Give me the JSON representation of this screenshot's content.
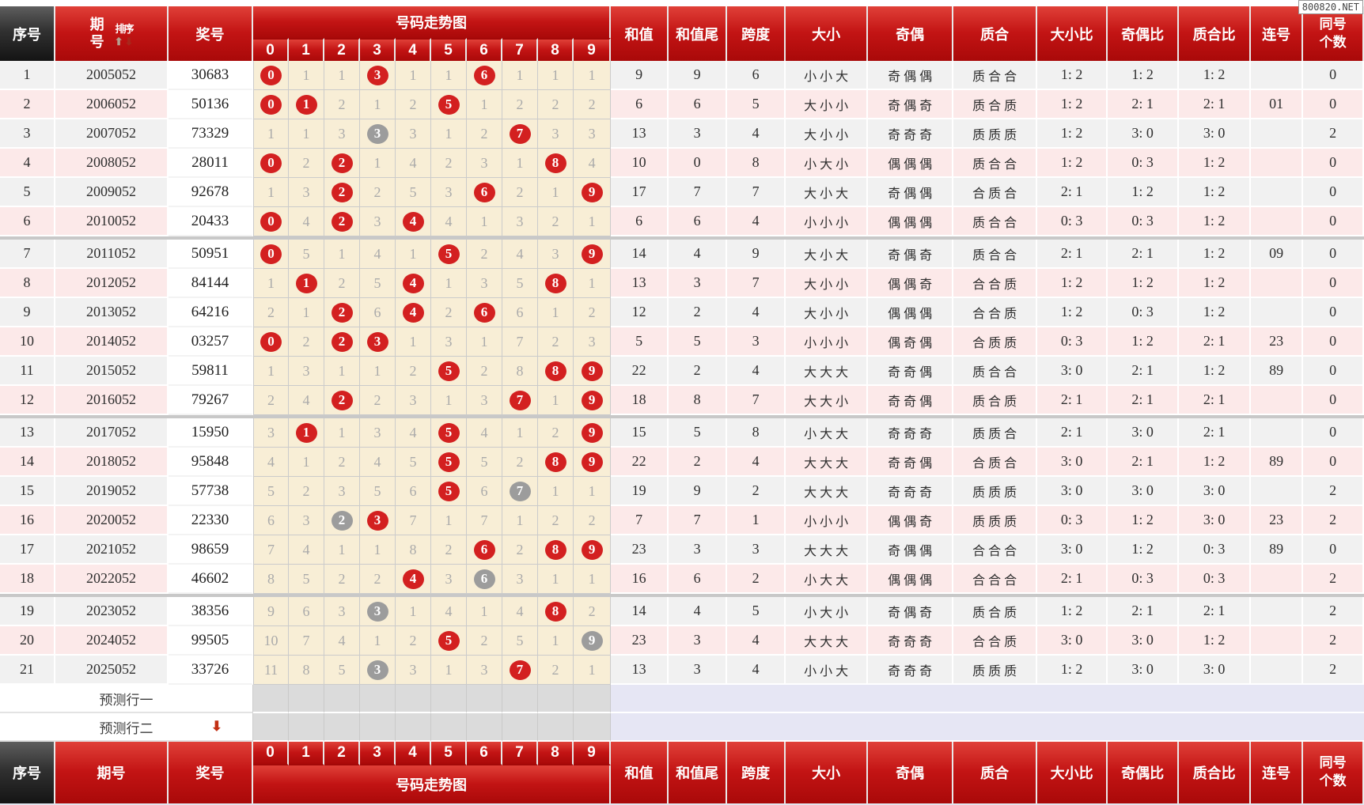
{
  "watermark": "800820.NET",
  "header": {
    "serial": "序号",
    "issue": "期号",
    "sort": "排序",
    "sort_up_icon": "⬆",
    "sort_down_icon": "⬇",
    "prize": "奖号",
    "trend_title": "号码走势图",
    "digits": [
      "0",
      "1",
      "2",
      "3",
      "4",
      "5",
      "6",
      "7",
      "8",
      "9"
    ],
    "stats": [
      "和值",
      "和值尾",
      "跨度",
      "大小",
      "奇偶",
      "质合",
      "大小比",
      "奇偶比",
      "质合比",
      "连号",
      "同号个数"
    ]
  },
  "footer": {
    "serial": "序号",
    "issue": "期号",
    "prize": "奖号",
    "trend_title": "号码走势图"
  },
  "legend": {
    "r": "red circle = drawn digit",
    "g": "gray circle = digit drawn more than once"
  },
  "group_separator_after": [
    6,
    12,
    18
  ],
  "rows": [
    {
      "no": "1",
      "issue": "2005052",
      "prize": "30683",
      "trend": [
        "0r",
        "1",
        "1",
        "3r",
        "1",
        "1",
        "6r",
        "1",
        "1",
        "1"
      ],
      "stats": [
        "9",
        "9",
        "6",
        "小小大",
        "奇偶偶",
        "质合合",
        "1: 2",
        "1: 2",
        "1: 2",
        "",
        "0"
      ]
    },
    {
      "no": "2",
      "issue": "2006052",
      "prize": "50136",
      "trend": [
        "0r",
        "1r",
        "2",
        "1",
        "2",
        "5r",
        "1",
        "2",
        "2",
        "2"
      ],
      "stats": [
        "6",
        "6",
        "5",
        "大小小",
        "奇偶奇",
        "质合质",
        "1: 2",
        "2: 1",
        "2: 1",
        "01",
        "0"
      ]
    },
    {
      "no": "3",
      "issue": "2007052",
      "prize": "73329",
      "trend": [
        "1",
        "1",
        "3",
        "3g",
        "3",
        "1",
        "2",
        "7r",
        "3",
        "3"
      ],
      "stats": [
        "13",
        "3",
        "4",
        "大小小",
        "奇奇奇",
        "质质质",
        "1: 2",
        "3: 0",
        "3: 0",
        "",
        "2"
      ]
    },
    {
      "no": "4",
      "issue": "2008052",
      "prize": "28011",
      "trend": [
        "0r",
        "2",
        "2r",
        "1",
        "4",
        "2",
        "3",
        "1",
        "8r",
        "4"
      ],
      "stats": [
        "10",
        "0",
        "8",
        "小大小",
        "偶偶偶",
        "质合合",
        "1: 2",
        "0: 3",
        "1: 2",
        "",
        "0"
      ]
    },
    {
      "no": "5",
      "issue": "2009052",
      "prize": "92678",
      "trend": [
        "1",
        "3",
        "2r",
        "2",
        "5",
        "3",
        "6r",
        "2",
        "1",
        "9r"
      ],
      "stats": [
        "17",
        "7",
        "7",
        "大小大",
        "奇偶偶",
        "合质合",
        "2: 1",
        "1: 2",
        "1: 2",
        "",
        "0"
      ]
    },
    {
      "no": "6",
      "issue": "2010052",
      "prize": "20433",
      "trend": [
        "0r",
        "4",
        "2r",
        "3",
        "4r",
        "4",
        "1",
        "3",
        "2",
        "1"
      ],
      "stats": [
        "6",
        "6",
        "4",
        "小小小",
        "偶偶偶",
        "质合合",
        "0: 3",
        "0: 3",
        "1: 2",
        "",
        "0"
      ]
    },
    {
      "no": "7",
      "issue": "2011052",
      "prize": "50951",
      "trend": [
        "0r",
        "5",
        "1",
        "4",
        "1",
        "5r",
        "2",
        "4",
        "3",
        "9r"
      ],
      "stats": [
        "14",
        "4",
        "9",
        "大小大",
        "奇偶奇",
        "质合合",
        "2: 1",
        "2: 1",
        "1: 2",
        "09",
        "0"
      ]
    },
    {
      "no": "8",
      "issue": "2012052",
      "prize": "84144",
      "trend": [
        "1",
        "1r",
        "2",
        "5",
        "4r",
        "1",
        "3",
        "5",
        "8r",
        "1"
      ],
      "stats": [
        "13",
        "3",
        "7",
        "大小小",
        "偶偶奇",
        "合合质",
        "1: 2",
        "1: 2",
        "1: 2",
        "",
        "0"
      ]
    },
    {
      "no": "9",
      "issue": "2013052",
      "prize": "64216",
      "trend": [
        "2",
        "1",
        "2r",
        "6",
        "4r",
        "2",
        "6r",
        "6",
        "1",
        "2"
      ],
      "stats": [
        "12",
        "2",
        "4",
        "大小小",
        "偶偶偶",
        "合合质",
        "1: 2",
        "0: 3",
        "1: 2",
        "",
        "0"
      ]
    },
    {
      "no": "10",
      "issue": "2014052",
      "prize": "03257",
      "trend": [
        "0r",
        "2",
        "2r",
        "3r",
        "1",
        "3",
        "1",
        "7",
        "2",
        "3"
      ],
      "stats": [
        "5",
        "5",
        "3",
        "小小小",
        "偶奇偶",
        "合质质",
        "0: 3",
        "1: 2",
        "2: 1",
        "23",
        "0"
      ]
    },
    {
      "no": "11",
      "issue": "2015052",
      "prize": "59811",
      "trend": [
        "1",
        "3",
        "1",
        "1",
        "2",
        "5r",
        "2",
        "8",
        "8r",
        "9r"
      ],
      "stats": [
        "22",
        "2",
        "4",
        "大大大",
        "奇奇偶",
        "质合合",
        "3: 0",
        "2: 1",
        "1: 2",
        "89",
        "0"
      ]
    },
    {
      "no": "12",
      "issue": "2016052",
      "prize": "79267",
      "trend": [
        "2",
        "4",
        "2r",
        "2",
        "3",
        "1",
        "3",
        "7r",
        "1",
        "9r"
      ],
      "stats": [
        "18",
        "8",
        "7",
        "大大小",
        "奇奇偶",
        "质合质",
        "2: 1",
        "2: 1",
        "2: 1",
        "",
        "0"
      ]
    },
    {
      "no": "13",
      "issue": "2017052",
      "prize": "15950",
      "trend": [
        "3",
        "1r",
        "1",
        "3",
        "4",
        "5r",
        "4",
        "1",
        "2",
        "9r"
      ],
      "stats": [
        "15",
        "5",
        "8",
        "小大大",
        "奇奇奇",
        "质质合",
        "2: 1",
        "3: 0",
        "2: 1",
        "",
        "0"
      ]
    },
    {
      "no": "14",
      "issue": "2018052",
      "prize": "95848",
      "trend": [
        "4",
        "1",
        "2",
        "4",
        "5",
        "5r",
        "5",
        "2",
        "8r",
        "9r"
      ],
      "stats": [
        "22",
        "2",
        "4",
        "大大大",
        "奇奇偶",
        "合质合",
        "3: 0",
        "2: 1",
        "1: 2",
        "89",
        "0"
      ]
    },
    {
      "no": "15",
      "issue": "2019052",
      "prize": "57738",
      "trend": [
        "5",
        "2",
        "3",
        "5",
        "6",
        "5r",
        "6",
        "7g",
        "1",
        "1"
      ],
      "stats": [
        "19",
        "9",
        "2",
        "大大大",
        "奇奇奇",
        "质质质",
        "3: 0",
        "3: 0",
        "3: 0",
        "",
        "2"
      ]
    },
    {
      "no": "16",
      "issue": "2020052",
      "prize": "22330",
      "trend": [
        "6",
        "3",
        "2g",
        "3r",
        "7",
        "1",
        "7",
        "1",
        "2",
        "2"
      ],
      "stats": [
        "7",
        "7",
        "1",
        "小小小",
        "偶偶奇",
        "质质质",
        "0: 3",
        "1: 2",
        "3: 0",
        "23",
        "2"
      ]
    },
    {
      "no": "17",
      "issue": "2021052",
      "prize": "98659",
      "trend": [
        "7",
        "4",
        "1",
        "1",
        "8",
        "2",
        "6r",
        "2",
        "8r",
        "9r"
      ],
      "stats": [
        "23",
        "3",
        "3",
        "大大大",
        "奇偶偶",
        "合合合",
        "3: 0",
        "1: 2",
        "0: 3",
        "89",
        "0"
      ]
    },
    {
      "no": "18",
      "issue": "2022052",
      "prize": "46602",
      "trend": [
        "8",
        "5",
        "2",
        "2",
        "4r",
        "3",
        "6g",
        "3",
        "1",
        "1"
      ],
      "stats": [
        "16",
        "6",
        "2",
        "小大大",
        "偶偶偶",
        "合合合",
        "2: 1",
        "0: 3",
        "0: 3",
        "",
        "2"
      ]
    },
    {
      "no": "19",
      "issue": "2023052",
      "prize": "38356",
      "trend": [
        "9",
        "6",
        "3",
        "3g",
        "1",
        "4",
        "1",
        "4",
        "8r",
        "2"
      ],
      "stats": [
        "14",
        "4",
        "5",
        "小大小",
        "奇偶奇",
        "质合质",
        "1: 2",
        "2: 1",
        "2: 1",
        "",
        "2"
      ]
    },
    {
      "no": "20",
      "issue": "2024052",
      "prize": "99505",
      "trend": [
        "10",
        "7",
        "4",
        "1",
        "2",
        "5r",
        "2",
        "5",
        "1",
        "9g"
      ],
      "stats": [
        "23",
        "3",
        "4",
        "大大大",
        "奇奇奇",
        "合合质",
        "3: 0",
        "3: 0",
        "1: 2",
        "",
        "2"
      ]
    },
    {
      "no": "21",
      "issue": "2025052",
      "prize": "33726",
      "trend": [
        "11",
        "8",
        "5",
        "3g",
        "3",
        "1",
        "3",
        "7r",
        "2",
        "1"
      ],
      "stats": [
        "13",
        "3",
        "4",
        "小小大",
        "奇奇奇",
        "质质质",
        "1: 2",
        "3: 0",
        "3: 0",
        "",
        "2"
      ]
    }
  ],
  "predict": [
    {
      "label": "预测行一",
      "arrow": ""
    },
    {
      "label": "预测行二",
      "arrow": "⬇"
    }
  ]
}
